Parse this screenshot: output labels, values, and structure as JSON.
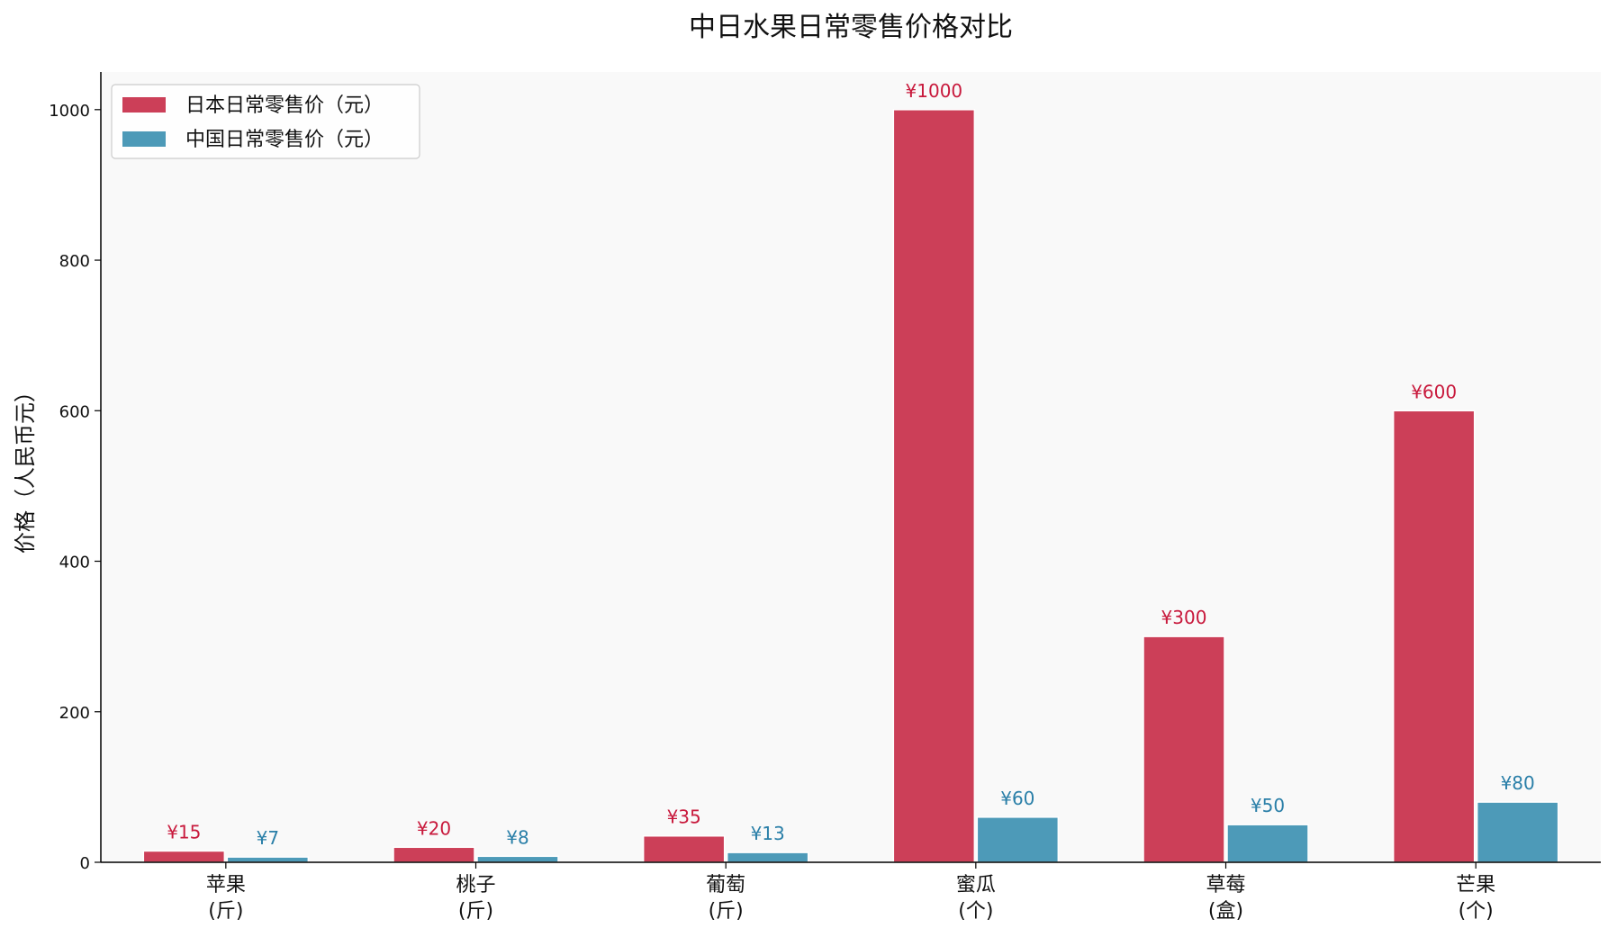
{
  "chart_data": {
    "type": "bar",
    "title": "中日水果日常零售价格对比",
    "xlabel": "",
    "ylabel": "价格（人民币元）",
    "categories": [
      [
        "苹果",
        "(斤)"
      ],
      [
        "桃子",
        "(斤)"
      ],
      [
        "葡萄",
        "(斤)"
      ],
      [
        "蜜瓜",
        "(个)"
      ],
      [
        "草莓",
        "(盒)"
      ],
      [
        "芒果",
        "(个)"
      ]
    ],
    "series": [
      {
        "name": "日本日常零售价（元）",
        "color": "#cc3f58",
        "label_color": "#c8193c",
        "values": [
          15,
          20,
          35,
          1000,
          300,
          600
        ],
        "labels": [
          "¥15",
          "¥20",
          "¥35",
          "¥1000",
          "¥300",
          "¥600"
        ]
      },
      {
        "name": "中国日常零售价（元）",
        "color": "#4d9ab8",
        "label_color": "#2a7fa8",
        "values": [
          7,
          8,
          13,
          60,
          50,
          80
        ],
        "labels": [
          "¥7",
          "¥8",
          "¥13",
          "¥60",
          "¥50",
          "¥80"
        ]
      }
    ],
    "ylim": [
      0,
      1050
    ],
    "yticks": [
      0,
      200,
      400,
      600,
      800,
      1000
    ],
    "grid": false,
    "legend_position": "top-left",
    "plot_background": "#f9f9f9"
  }
}
